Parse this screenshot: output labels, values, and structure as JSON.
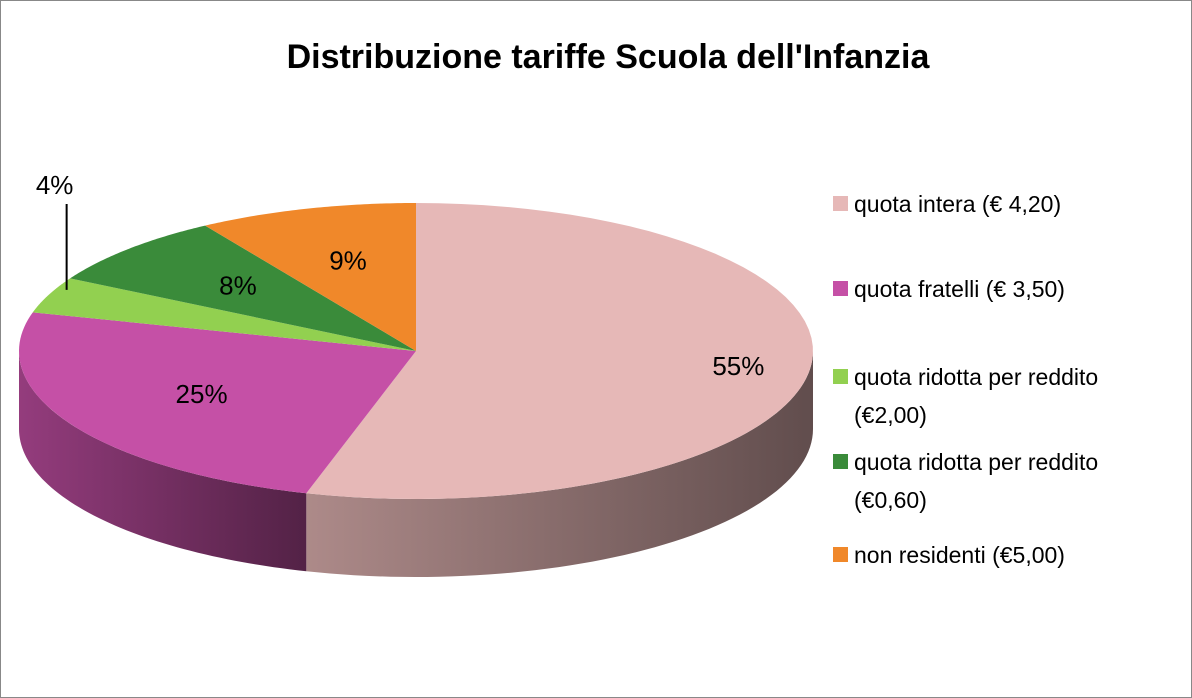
{
  "chart_data": {
    "type": "pie",
    "title": "Distribuzione tariffe Scuola dell'Infanzia",
    "categories": [
      "quota intera (€ 4,20)",
      "quota fratelli (€ 3,50)",
      "quota ridotta per reddito (€2,00)",
      "quota ridotta per reddito (€0,60)",
      "non residenti (€5,00)"
    ],
    "values": [
      55,
      25,
      4,
      8,
      9
    ],
    "value_labels": [
      "55%",
      "25%",
      "4%",
      "8%",
      "9%"
    ],
    "colors": [
      "#e6b8b7",
      "#c550a6",
      "#92d050",
      "#3a8b3a",
      "#f0882a"
    ],
    "legend": "right"
  }
}
